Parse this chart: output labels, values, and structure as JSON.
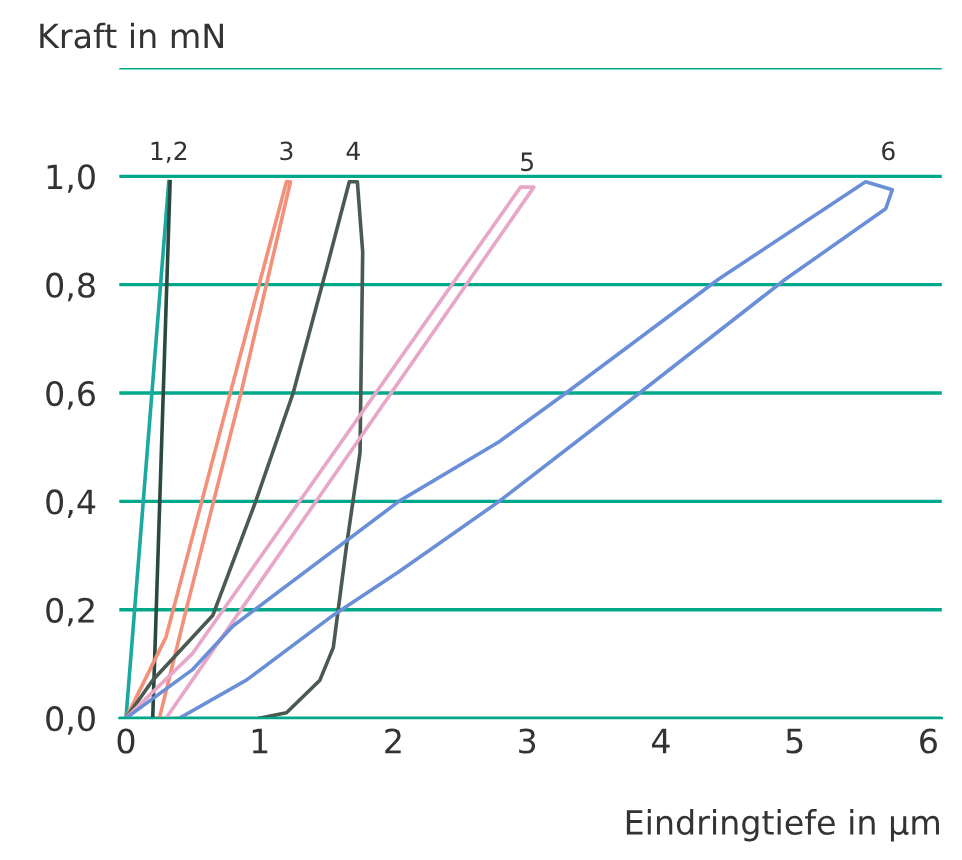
{
  "chart_data": {
    "type": "line",
    "ylabel": "Kraft in mN",
    "xlabel": "Eindringtiefe in µm",
    "xlim": [
      -0.05,
      6.1
    ],
    "xticks": [
      0,
      1,
      2,
      3,
      4,
      5,
      6
    ],
    "ylim": [
      0,
      1.2
    ],
    "yticks": [
      {
        "value": 0,
        "label": "0,0"
      },
      {
        "value": 0.2,
        "label": "0,2"
      },
      {
        "value": 0.4,
        "label": "0,4"
      },
      {
        "value": 0.6,
        "label": "0,6"
      },
      {
        "value": 0.8,
        "label": "0,8"
      },
      {
        "value": 1.0,
        "label": "1,0"
      },
      {
        "value": 1.2,
        "label": null
      }
    ],
    "grid": "y",
    "marker": "none",
    "line_style": "solid",
    "series": [
      {
        "color": "#1aa8a0",
        "x": [
          0,
          0.32
        ],
        "values": [
          0,
          0.99
        ]
      },
      {
        "color": "#2a4a40",
        "x": [
          0.33,
          0.2
        ],
        "values": [
          0.99,
          0
        ]
      },
      {
        "color": "#f4907a",
        "x": [
          0,
          0.3,
          0.78,
          1.2,
          1.23,
          0.86,
          0.45,
          0.25
        ],
        "values": [
          0,
          0.15,
          0.6,
          0.99,
          0.99,
          0.6,
          0.2,
          0
        ]
      },
      {
        "color": "#4a5a50",
        "x": [
          0,
          0.2,
          0.65,
          0.97,
          1.25,
          1.5,
          1.67,
          1.73,
          1.77,
          1.75,
          1.65,
          1.55,
          1.45,
          1.2,
          1.0
        ],
        "values": [
          0,
          0.07,
          0.19,
          0.4,
          0.6,
          0.83,
          0.99,
          0.99,
          0.86,
          0.49,
          0.32,
          0.13,
          0.07,
          0.01,
          0
        ]
      },
      {
        "color": "#e8a6c8",
        "x": [
          0,
          0.5,
          2.95,
          3.05,
          1.0,
          0.3
        ],
        "values": [
          0,
          0.12,
          0.98,
          0.98,
          0.25,
          0
        ]
      },
      {
        "color": "#6a8fd8",
        "x": [
          0,
          0.5,
          0.8,
          2.04,
          2.79,
          3.29,
          4.43,
          5.53,
          5.73,
          5.68,
          4.93,
          3.84,
          2.79,
          2.04,
          1.55,
          0.9,
          0.4
        ],
        "values": [
          0,
          0.09,
          0.17,
          0.4,
          0.51,
          0.6,
          0.81,
          0.99,
          0.975,
          0.94,
          0.81,
          0.6,
          0.4,
          0.27,
          0.19,
          0.07,
          0
        ]
      }
    ],
    "annotations": [
      {
        "text": "1,2",
        "x": 0.32,
        "y": 1.0
      },
      {
        "text": "3",
        "x": 1.2,
        "y": 1.0
      },
      {
        "text": "4",
        "x": 1.7,
        "y": 1.0
      },
      {
        "text": "5",
        "x": 3.0,
        "y": 0.98
      },
      {
        "text": "6",
        "x": 5.7,
        "y": 1.0
      }
    ]
  }
}
